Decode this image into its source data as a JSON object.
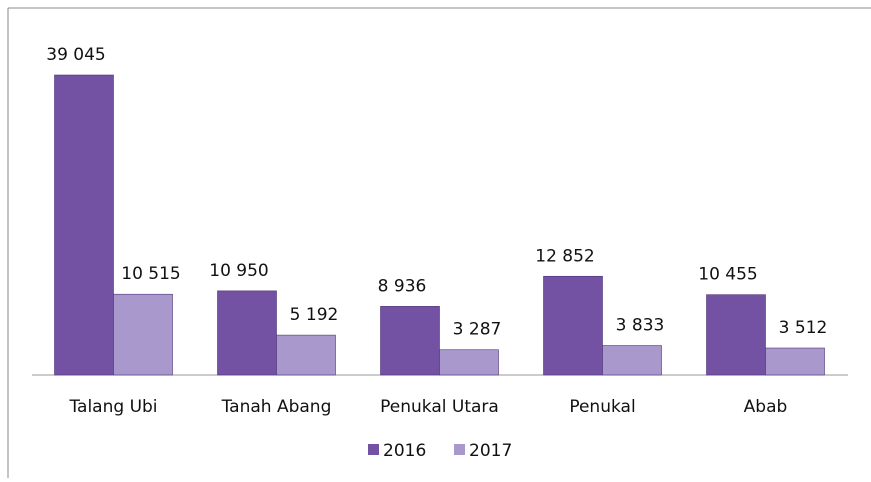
{
  "chart_data": {
    "type": "bar",
    "categories": [
      "Talang Ubi",
      "Tanah Abang",
      "Penukal Utara",
      "Penukal",
      "Abab"
    ],
    "series": [
      {
        "name": "2016",
        "color": "#7452a3",
        "values": [
          39045,
          10950,
          8936,
          12852,
          10455
        ],
        "value_labels": [
          "39 045",
          "10 950",
          "8 936",
          "12 852",
          "10 455"
        ]
      },
      {
        "name": "2017",
        "color": "#a898cb",
        "values": [
          10515,
          5192,
          3287,
          3833,
          3512
        ],
        "value_labels": [
          "10 515",
          "5 192",
          "3 287",
          "3 833",
          "3 512"
        ]
      }
    ],
    "legend": "bottom"
  }
}
